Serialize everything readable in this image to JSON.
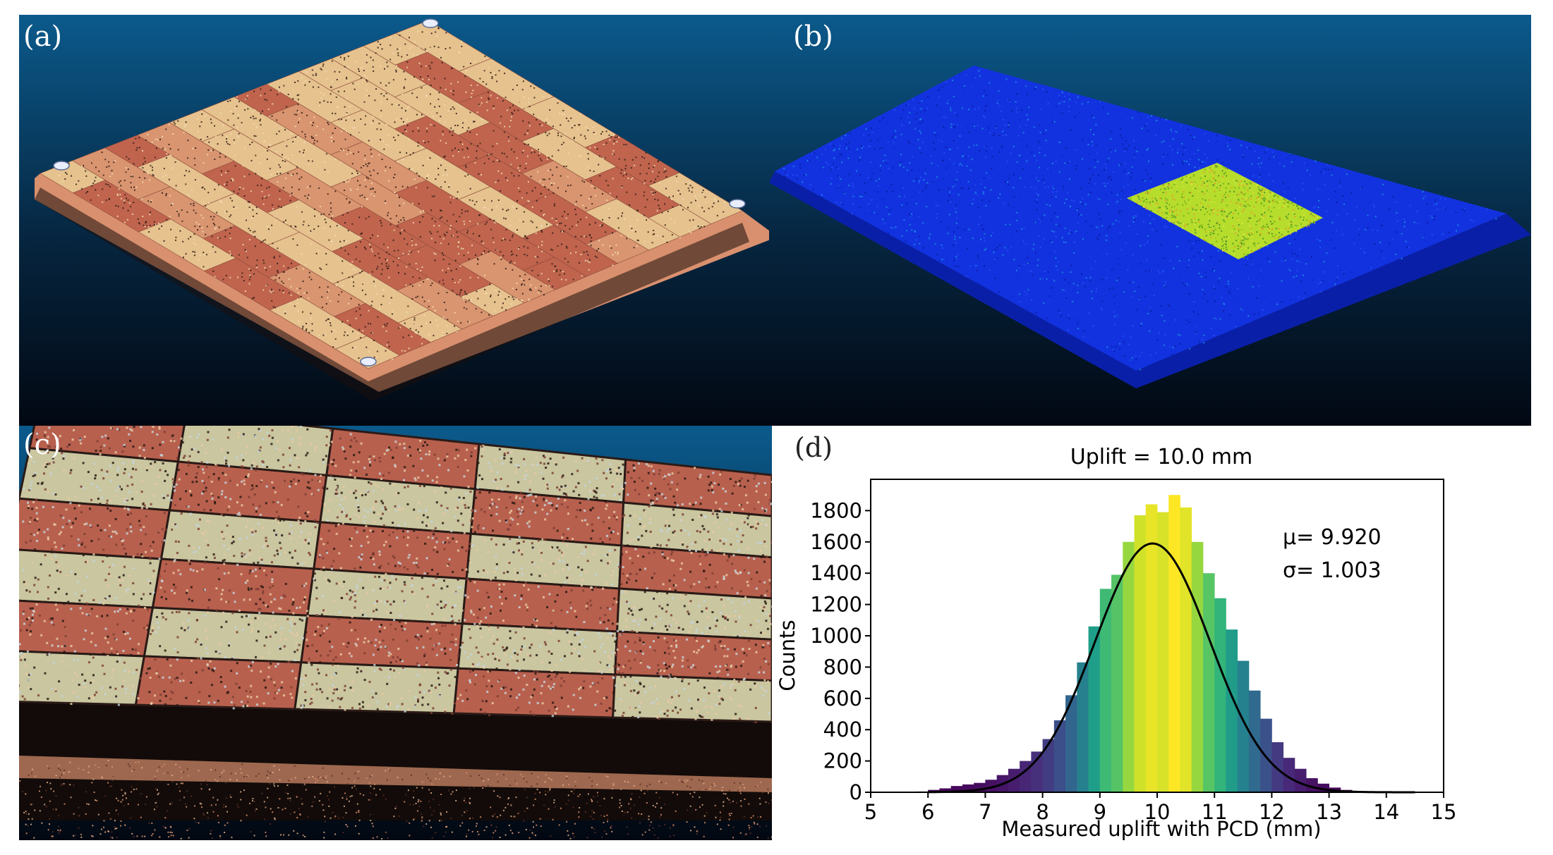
{
  "figure": {
    "panels": {
      "a": {
        "label": "(a)",
        "colors": {
          "bg_top": "#0b5a8c",
          "bg_bottom": "#020812",
          "tile_dark": "#c0644e",
          "tile_light": "#e6c28e",
          "tile_mid": "#d99570",
          "edge": "#d9906e"
        }
      },
      "b": {
        "label": "(b)",
        "colors": {
          "bg_top": "#0b5a8c",
          "bg_bottom": "#020812",
          "slab": "#1232e0",
          "slab_edge": "#0a1fa8",
          "patch": "#b6dc2c"
        }
      },
      "c": {
        "label": "(c)",
        "colors": {
          "bg_top": "#0b5a8c",
          "bg_bottom": "#020812",
          "red": "#b8604e",
          "light": "#c9c6a0",
          "edge": "#d9906e"
        }
      },
      "d": {
        "label": "(d)"
      }
    }
  },
  "chart_data": {
    "type": "bar",
    "title": "Uplift = 10.0 mm",
    "xlabel": "Measured uplift with PCD (mm)",
    "ylabel": "Counts",
    "xlim": [
      5,
      15
    ],
    "ylim": [
      0,
      2000
    ],
    "xticks": [
      "5",
      "6",
      "7",
      "8",
      "9",
      "10",
      "11",
      "12",
      "13",
      "14",
      "15"
    ],
    "yticks": [
      "0",
      "200",
      "400",
      "600",
      "800",
      "1000",
      "1200",
      "1400",
      "1600",
      "1800"
    ],
    "annotations": [
      "μ= 9.920",
      "σ= 1.003"
    ],
    "bin_width": 0.2,
    "bins_start": [
      5.8,
      6.0,
      6.2,
      6.4,
      6.6,
      6.8,
      7.0,
      7.2,
      7.4,
      7.6,
      7.8,
      8.0,
      8.2,
      8.4,
      8.6,
      8.8,
      9.0,
      9.2,
      9.4,
      9.6,
      9.8,
      10.0,
      10.2,
      10.4,
      10.6,
      10.8,
      11.0,
      11.2,
      11.4,
      11.6,
      11.8,
      12.0,
      12.2,
      12.4,
      12.6,
      12.8,
      13.0,
      13.2,
      13.4
    ],
    "counts": [
      5,
      15,
      25,
      40,
      50,
      60,
      80,
      110,
      150,
      200,
      260,
      340,
      460,
      620,
      830,
      1060,
      1300,
      1390,
      1600,
      1770,
      1840,
      1790,
      1900,
      1820,
      1600,
      1400,
      1240,
      1040,
      840,
      650,
      470,
      320,
      220,
      150,
      90,
      55,
      30,
      15,
      5
    ],
    "fit_curve": {
      "type": "normal",
      "mu": 9.92,
      "sigma": 1.003,
      "peak": 1590,
      "color": "#000000"
    },
    "colormap": "viridis"
  }
}
